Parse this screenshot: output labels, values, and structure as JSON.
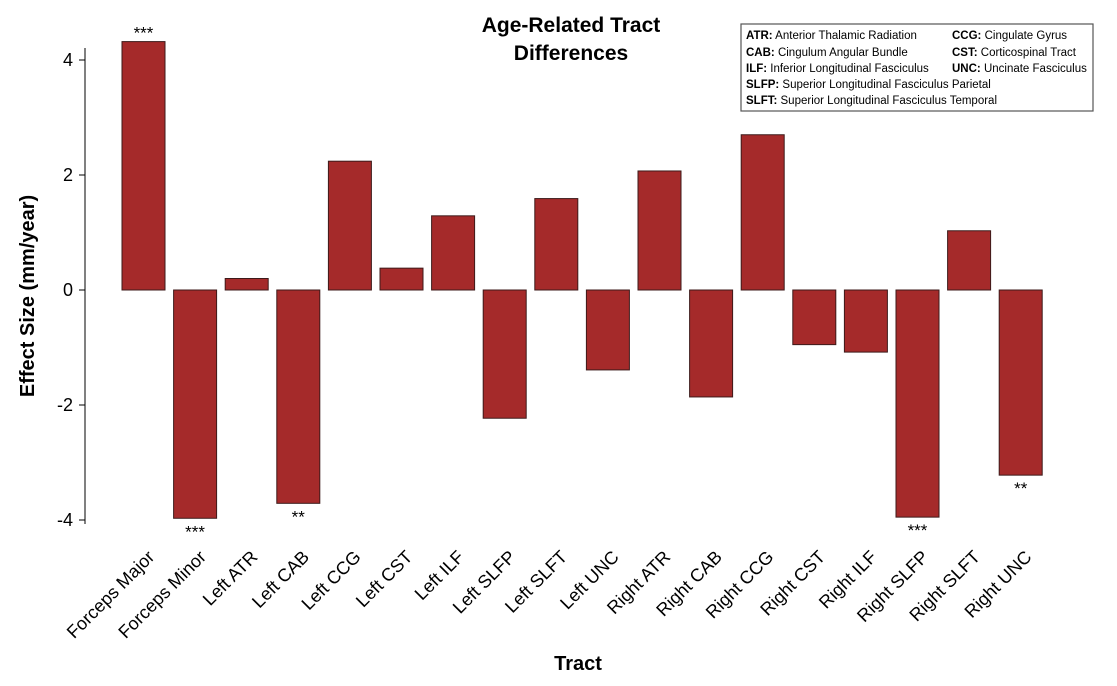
{
  "chart_data": {
    "type": "bar",
    "title_lines": [
      "Age-Related Tract",
      "Differences"
    ],
    "xlabel": "Tract",
    "ylabel": "Effect Size (mm/year)",
    "ylim": [
      -4,
      4.3
    ],
    "yticks": [
      4,
      2,
      0,
      -2,
      -4
    ],
    "bar_color": "#a52a2a",
    "bar_edge_color": "#3d1a1a",
    "grid": false,
    "legend_position": "top-right",
    "categories": [
      "Forceps Major",
      "Forceps Minor",
      "Left ATR",
      "Left CAB",
      "Left CCG",
      "Left CST",
      "Left ILF",
      "Left SLFP",
      "Left SLFT",
      "Left UNC",
      "Right ATR",
      "Right CAB",
      "Right CCG",
      "Right CST",
      "Right ILF",
      "Right SLFP",
      "Right SLFT",
      "Right UNC"
    ],
    "values": [
      4.32,
      -3.97,
      0.2,
      -3.71,
      2.24,
      0.38,
      1.29,
      -2.23,
      1.59,
      -1.39,
      2.07,
      -1.86,
      2.7,
      -0.95,
      -1.08,
      -3.95,
      1.03,
      -3.22
    ],
    "significance": [
      "***",
      "***",
      "",
      "**",
      "",
      "",
      "",
      "",
      "",
      "",
      "",
      "",
      "",
      "",
      "",
      "***",
      "",
      "**"
    ],
    "legend": [
      {
        "abbr": "ATR:",
        "full": "Anterior Thalamic Radiation"
      },
      {
        "abbr": "CCG:",
        "full": "Cingulate Gyrus"
      },
      {
        "abbr": "CAB:",
        "full": "Cingulum Angular Bundle"
      },
      {
        "abbr": "CST:",
        "full": "Corticospinal Tract"
      },
      {
        "abbr": "ILF:",
        "full": "Inferior Longitudinal Fasciculus"
      },
      {
        "abbr": "UNC:",
        "full": "Uncinate Fasciculus"
      },
      {
        "abbr": "SLFP:",
        "full": "Superior Longitudinal Fasciculus Parietal"
      },
      {
        "abbr": "SLFT:",
        "full": "Superior Longitudinal Fasciculus Temporal"
      }
    ]
  }
}
